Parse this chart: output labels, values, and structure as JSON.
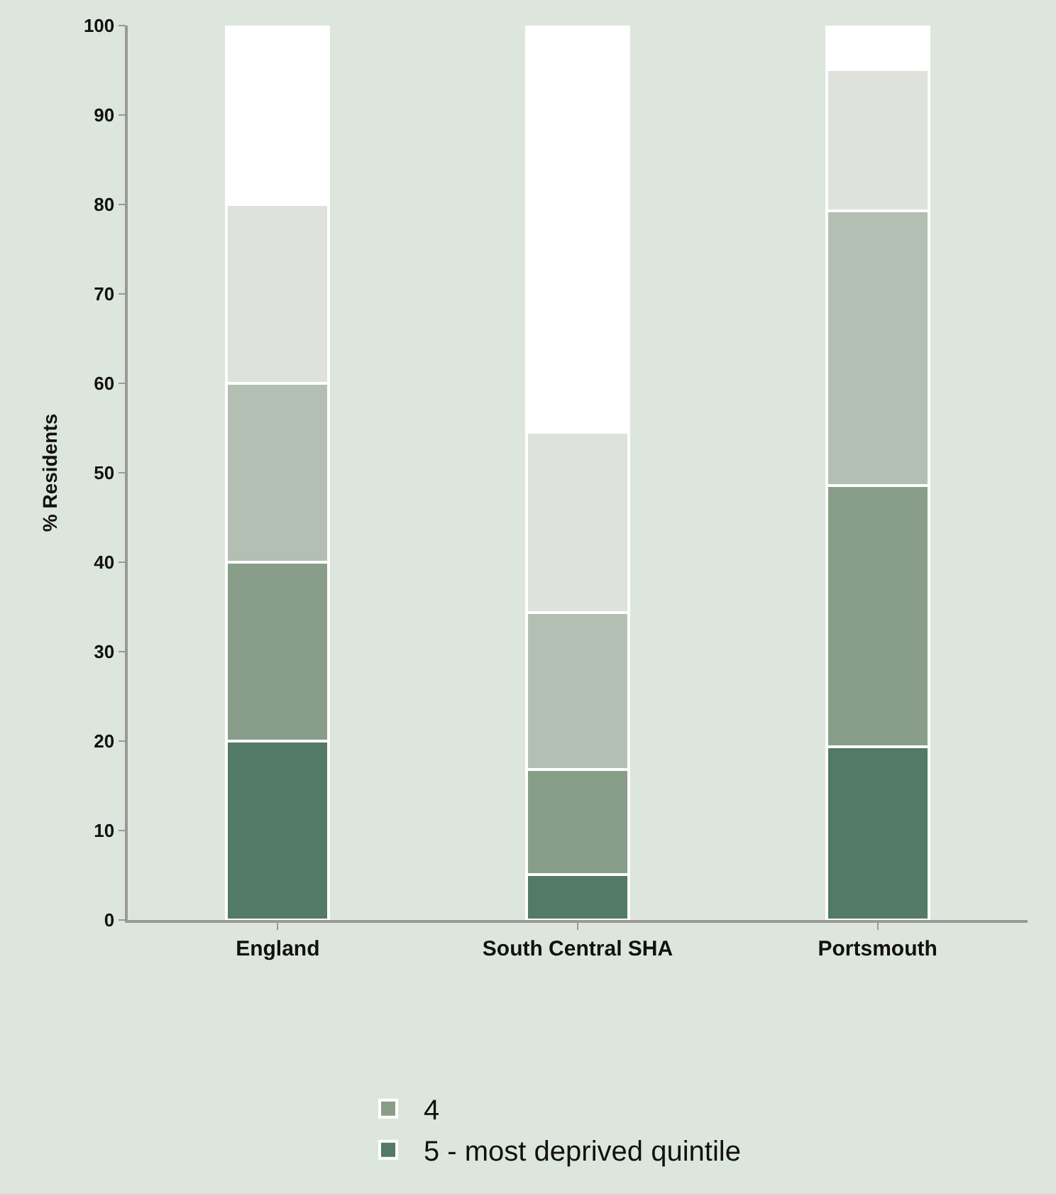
{
  "chart_data": {
    "type": "bar",
    "stacked": true,
    "ylabel": "% Residents",
    "categories": [
      "England",
      "South Central SHA",
      "Portsmouth"
    ],
    "series": [
      {
        "name": "5 - most deprived quintile",
        "color": "#527a64",
        "values": [
          20,
          5.1,
          19.4
        ]
      },
      {
        "name": "4",
        "color": "#889e89",
        "values": [
          20,
          11.7,
          29.2
        ]
      },
      {
        "color": "#b3bfb3",
        "values": [
          20,
          17.6,
          30.7
        ]
      },
      {
        "color": "#dfe1dc",
        "values": [
          20,
          20.1,
          15.8
        ]
      },
      {
        "color": "#ffffff",
        "values": [
          20,
          45.5,
          4.9
        ]
      }
    ],
    "ylim": [
      0,
      100
    ],
    "yticks": [
      0,
      10,
      20,
      30,
      40,
      50,
      60,
      70,
      80,
      90,
      100
    ],
    "grid": false,
    "legend": "bottom"
  }
}
